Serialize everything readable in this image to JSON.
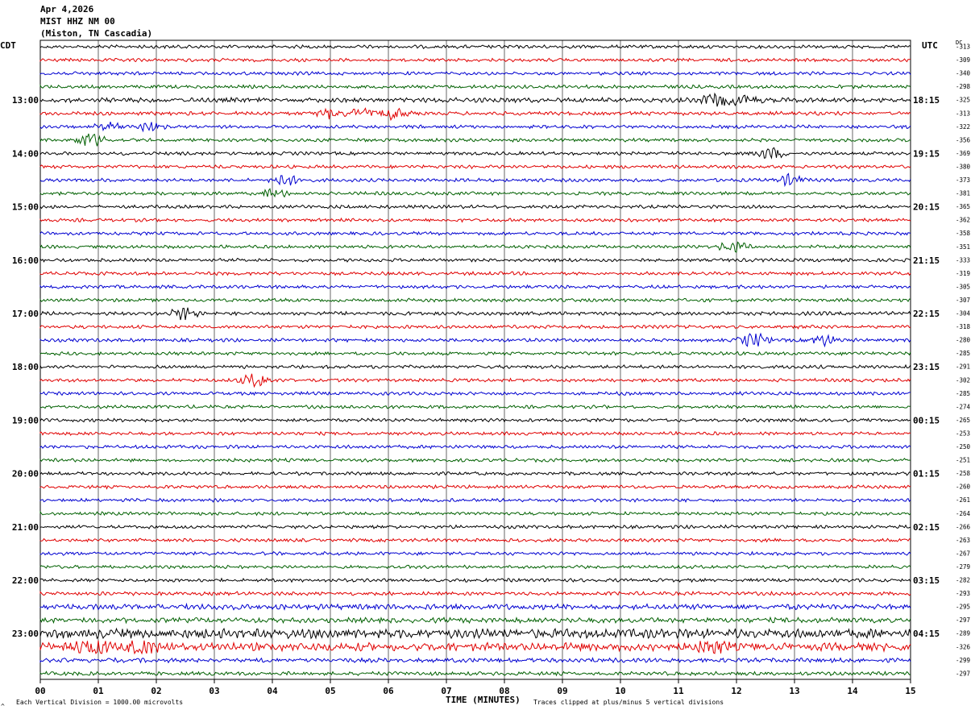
{
  "header": {
    "date": "Apr 4,2026",
    "station": "MIST HHZ NM 00",
    "location": "(Miston, TN Cascadia)"
  },
  "left_tz": "CDT",
  "right_tz": "UTC",
  "dc_label": "DC",
  "footer": {
    "scale_note": "Each Vertical Division = 1000.00 microvolts",
    "clip_note": "Traces clipped at plus/minus 5 vertical divisions",
    "corner_mark": "^"
  },
  "chart_data": {
    "type": "line",
    "xlabel": "TIME (MINUTES)",
    "x_ticks": [
      "00",
      "01",
      "02",
      "03",
      "04",
      "05",
      "06",
      "07",
      "08",
      "09",
      "10",
      "11",
      "12",
      "13",
      "14",
      "15"
    ],
    "xlim": [
      0,
      15
    ],
    "trace_count": 48,
    "trace_colors": [
      "#000000",
      "#e00000",
      "#0000d0",
      "#006000"
    ],
    "left_hour_labels": [
      "13:00",
      "14:00",
      "15:00",
      "16:00",
      "17:00",
      "18:00",
      "19:00",
      "20:00",
      "21:00",
      "22:00",
      "23:00"
    ],
    "right_hour_labels": [
      "18:15",
      "19:15",
      "20:15",
      "21:15",
      "22:15",
      "23:15",
      "00:15",
      "01:15",
      "02:15",
      "03:15",
      "04:15"
    ],
    "hour_label_trace_index": [
      4,
      8,
      12,
      16,
      20,
      24,
      28,
      32,
      36,
      40,
      44
    ],
    "dc_offsets": [
      "-313",
      "-309",
      "-340",
      "-298",
      "-325",
      "-313",
      "-322",
      "-356",
      "-369",
      "-380",
      "-373",
      "-381",
      "-365",
      "-362",
      "-358",
      "-351",
      "-333",
      "-319",
      "-305",
      "-307",
      "-304",
      "-318",
      "-280",
      "-285",
      "-291",
      "-302",
      "-285",
      "-274",
      "-265",
      "-253",
      "-250",
      "-251",
      "-258",
      "-260",
      "-261",
      "-264",
      "-266",
      "-263",
      "-267",
      "-279",
      "-282",
      "-293",
      "-295",
      "-297",
      "-289",
      "-326",
      "-299",
      "-297"
    ],
    "noise_levels": [
      1,
      1,
      1,
      1,
      1.4,
      1.1,
      1,
      1,
      1,
      1,
      1,
      1,
      1,
      1,
      1,
      1,
      1,
      1,
      1,
      1,
      1.1,
      1,
      1,
      1,
      1,
      1,
      1,
      1,
      1,
      1,
      1,
      1,
      1,
      1,
      1,
      1,
      1,
      1,
      1,
      1,
      1,
      1.1,
      1.6,
      1.5,
      2.8,
      2.4,
      1.3,
      1.1
    ],
    "events": [
      {
        "trace": 4,
        "minute": 11.65,
        "amp": 6
      },
      {
        "trace": 4,
        "minute": 12.15,
        "amp": 5
      },
      {
        "trace": 5,
        "minute": 5.0,
        "amp": 4
      },
      {
        "trace": 5,
        "minute": 5.55,
        "amp": 5
      },
      {
        "trace": 5,
        "minute": 6.1,
        "amp": 5
      },
      {
        "trace": 6,
        "minute": 1.2,
        "amp": 4
      },
      {
        "trace": 6,
        "minute": 1.85,
        "amp": 4
      },
      {
        "trace": 7,
        "minute": 0.85,
        "amp": 7
      },
      {
        "trace": 8,
        "minute": 12.6,
        "amp": 5
      },
      {
        "trace": 10,
        "minute": 4.2,
        "amp": 5
      },
      {
        "trace": 10,
        "minute": 12.9,
        "amp": 5
      },
      {
        "trace": 11,
        "minute": 4.0,
        "amp": 4
      },
      {
        "trace": 15,
        "minute": 11.95,
        "amp": 5
      },
      {
        "trace": 20,
        "minute": 2.5,
        "amp": 6
      },
      {
        "trace": 22,
        "minute": 12.3,
        "amp": 7
      },
      {
        "trace": 22,
        "minute": 13.5,
        "amp": 5
      },
      {
        "trace": 25,
        "minute": 3.7,
        "amp": 6
      },
      {
        "trace": 45,
        "minute": 0.9,
        "amp": 9
      },
      {
        "trace": 45,
        "minute": 1.75,
        "amp": 8
      },
      {
        "trace": 45,
        "minute": 11.6,
        "amp": 6
      }
    ]
  }
}
